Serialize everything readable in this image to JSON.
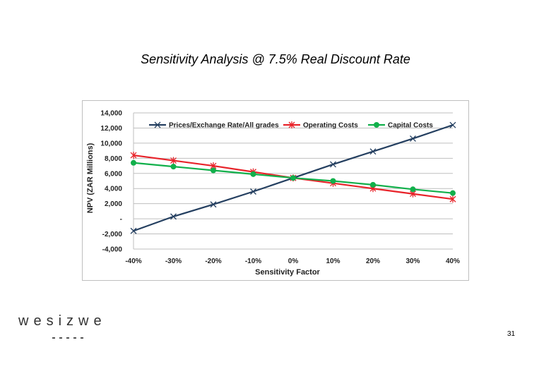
{
  "slide": {
    "title": "Sensitivity Analysis @ 7.5% Real Discount Rate",
    "page_number": "31",
    "logo_text": "wesizwe"
  },
  "chart_data": {
    "type": "line",
    "title": "",
    "xlabel": "Sensitivity Factor",
    "ylabel": "NPV (ZAR Millions)",
    "categories": [
      "-40%",
      "-30%",
      "-20%",
      "-10%",
      "0%",
      "10%",
      "20%",
      "30%",
      "40%"
    ],
    "ylim": [
      -4000,
      14000
    ],
    "yticks": [
      {
        "value": 14000,
        "label": "14,000"
      },
      {
        "value": 12000,
        "label": "12,000"
      },
      {
        "value": 10000,
        "label": "10,000"
      },
      {
        "value": 8000,
        "label": "8,000"
      },
      {
        "value": 6000,
        "label": "6,000"
      },
      {
        "value": 4000,
        "label": "4,000"
      },
      {
        "value": 2000,
        "label": "2,000"
      },
      {
        "value": 0,
        "label": "-"
      },
      {
        "value": -2000,
        "label": "-2,000"
      },
      {
        "value": -4000,
        "label": "-4,000"
      }
    ],
    "grid": true,
    "legend": "top",
    "series": [
      {
        "name": "Prices/Exchange Rate/All grades",
        "color": "#243f60",
        "marker": "x",
        "values": [
          -1600,
          300,
          1900,
          3600,
          5400,
          7200,
          8900,
          10600,
          12400
        ]
      },
      {
        "name": "Operating Costs",
        "color": "#e8232a",
        "marker": "asterisk",
        "values": [
          8400,
          7700,
          7000,
          6200,
          5400,
          4700,
          4000,
          3300,
          2600
        ]
      },
      {
        "name": "Capital Costs",
        "color": "#11b04b",
        "marker": "circle",
        "values": [
          7400,
          6900,
          6400,
          5900,
          5400,
          5000,
          4500,
          3900,
          3400
        ]
      }
    ]
  }
}
